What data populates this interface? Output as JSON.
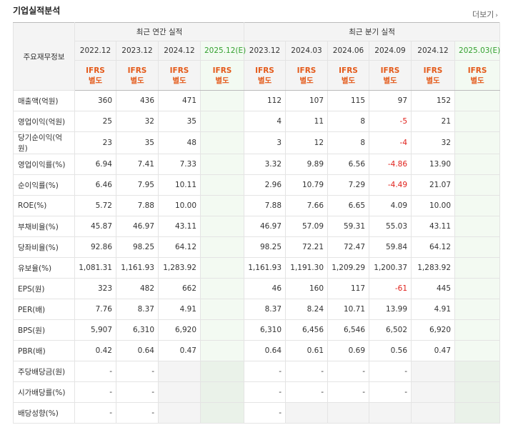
{
  "title": "기업실적분석",
  "more_label": "더보기",
  "header": {
    "label_col": "주요재무정보",
    "annual": "최근 연간 실적",
    "quarterly": "최근 분기 실적",
    "annual_periods": [
      "2022.12",
      "2023.12",
      "2024.12",
      "2025.12(E)"
    ],
    "quarterly_periods": [
      "2023.12",
      "2024.03",
      "2024.06",
      "2024.09",
      "2024.12",
      "2025.03(E)"
    ],
    "ifrs_line1": "IFRS",
    "ifrs_line2": "별도"
  },
  "rows": [
    {
      "label": "매출액(억원)",
      "annual": [
        "360",
        "436",
        "471",
        ""
      ],
      "quarterly": [
        "112",
        "107",
        "115",
        "97",
        "152",
        ""
      ]
    },
    {
      "label": "영업이익(억원)",
      "annual": [
        "25",
        "32",
        "35",
        ""
      ],
      "quarterly": [
        "4",
        "11",
        "8",
        "-5",
        "21",
        ""
      ]
    },
    {
      "label": "당기순이익(억원)",
      "annual": [
        "23",
        "35",
        "48",
        ""
      ],
      "quarterly": [
        "3",
        "12",
        "8",
        "-4",
        "32",
        ""
      ]
    },
    {
      "label": "영업이익률(%)",
      "annual": [
        "6.94",
        "7.41",
        "7.33",
        ""
      ],
      "quarterly": [
        "3.32",
        "9.89",
        "6.56",
        "-4.86",
        "13.90",
        ""
      ]
    },
    {
      "label": "순이익률(%)",
      "annual": [
        "6.46",
        "7.95",
        "10.11",
        ""
      ],
      "quarterly": [
        "2.96",
        "10.79",
        "7.29",
        "-4.49",
        "21.07",
        ""
      ]
    },
    {
      "label": "ROE(%)",
      "annual": [
        "5.72",
        "7.88",
        "10.00",
        ""
      ],
      "quarterly": [
        "7.88",
        "7.66",
        "6.65",
        "4.09",
        "10.00",
        ""
      ]
    },
    {
      "label": "부채비율(%)",
      "annual": [
        "45.87",
        "46.97",
        "43.11",
        ""
      ],
      "quarterly": [
        "46.97",
        "57.09",
        "59.31",
        "55.03",
        "43.11",
        ""
      ]
    },
    {
      "label": "당좌비율(%)",
      "annual": [
        "92.86",
        "98.25",
        "64.12",
        ""
      ],
      "quarterly": [
        "98.25",
        "72.21",
        "72.47",
        "59.84",
        "64.12",
        ""
      ]
    },
    {
      "label": "유보율(%)",
      "annual": [
        "1,081.31",
        "1,161.93",
        "1,283.92",
        ""
      ],
      "quarterly": [
        "1,161.93",
        "1,191.30",
        "1,209.29",
        "1,200.37",
        "1,283.92",
        ""
      ]
    },
    {
      "label": "EPS(원)",
      "annual": [
        "323",
        "482",
        "662",
        ""
      ],
      "quarterly": [
        "46",
        "160",
        "117",
        "-61",
        "445",
        ""
      ]
    },
    {
      "label": "PER(배)",
      "annual": [
        "7.76",
        "8.37",
        "4.91",
        ""
      ],
      "quarterly": [
        "8.37",
        "8.24",
        "10.71",
        "13.99",
        "4.91",
        ""
      ]
    },
    {
      "label": "BPS(원)",
      "annual": [
        "5,907",
        "6,310",
        "6,920",
        ""
      ],
      "quarterly": [
        "6,310",
        "6,456",
        "6,546",
        "6,502",
        "6,920",
        ""
      ]
    },
    {
      "label": "PBR(배)",
      "annual": [
        "0.42",
        "0.64",
        "0.47",
        ""
      ],
      "quarterly": [
        "0.64",
        "0.61",
        "0.69",
        "0.56",
        "0.47",
        ""
      ]
    },
    {
      "label": "주당배당금(원)",
      "annual": [
        "-",
        "-",
        "",
        ""
      ],
      "quarterly": [
        "-",
        "-",
        "-",
        "-",
        "",
        ""
      ]
    },
    {
      "label": "시가배당률(%)",
      "annual": [
        "-",
        "-",
        "",
        ""
      ],
      "quarterly": [
        "-",
        "-",
        "-",
        "-",
        "",
        ""
      ]
    },
    {
      "label": "배당성향(%)",
      "annual": [
        "-",
        "-",
        "",
        ""
      ],
      "quarterly": [
        "-",
        "",
        "",
        "",
        "",
        ""
      ]
    }
  ]
}
